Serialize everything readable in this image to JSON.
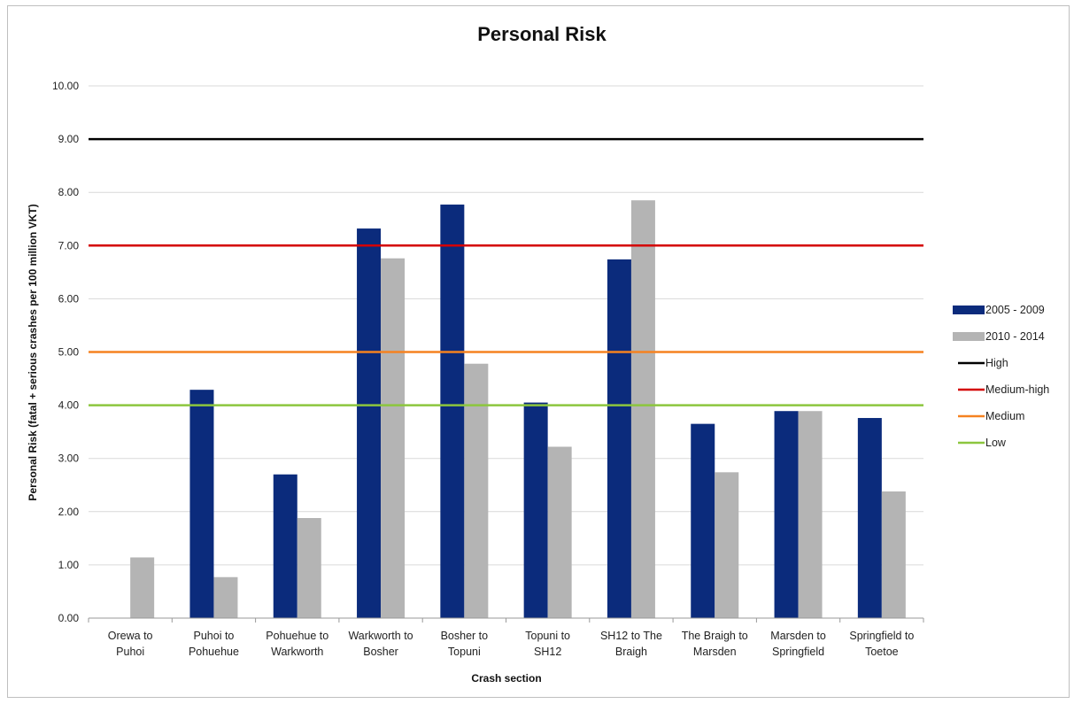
{
  "chart_data": {
    "type": "bar",
    "title": "Personal Risk",
    "xlabel": "Crash section",
    "ylabel": "Personal Risk (fatal + serious crashes per 100 million VKT)",
    "ylim": [
      0,
      10
    ],
    "yticks": [
      "0.00",
      "1.00",
      "2.00",
      "3.00",
      "4.00",
      "5.00",
      "6.00",
      "7.00",
      "8.00",
      "9.00",
      "10.00"
    ],
    "grid": true,
    "legend_position": "right",
    "categories": [
      [
        "Orewa to",
        "Puhoi"
      ],
      [
        "Puhoi to",
        "Pohuehue"
      ],
      [
        "Pohuehue to",
        "Warkworth"
      ],
      [
        "Warkworth to",
        "Bosher"
      ],
      [
        "Bosher to",
        "Topuni"
      ],
      [
        "Topuni to",
        "SH12"
      ],
      [
        "SH12 to The",
        "Braigh"
      ],
      [
        "The Braigh to",
        "Marsden"
      ],
      [
        "Marsden to",
        "Springfield"
      ],
      [
        "Springfield to",
        "Toetoe"
      ]
    ],
    "series": [
      {
        "name": "2005 - 2009",
        "color": "#0b2b7c",
        "values": [
          0,
          4.29,
          2.7,
          7.32,
          7.77,
          4.05,
          6.74,
          3.65,
          3.89,
          3.76
        ]
      },
      {
        "name": "2010 - 2014",
        "color": "#b4b4b4",
        "values": [
          1.14,
          0.77,
          1.88,
          6.76,
          4.78,
          3.22,
          7.85,
          2.74,
          3.89,
          2.38
        ]
      }
    ],
    "reference_lines": [
      {
        "name": "High",
        "value": 9.0,
        "color": "#000000"
      },
      {
        "name": "Medium-high",
        "value": 7.0,
        "color": "#d40000"
      },
      {
        "name": "Medium",
        "value": 5.0,
        "color": "#f58220"
      },
      {
        "name": "Low",
        "value": 4.0,
        "color": "#8cc63e"
      }
    ]
  }
}
